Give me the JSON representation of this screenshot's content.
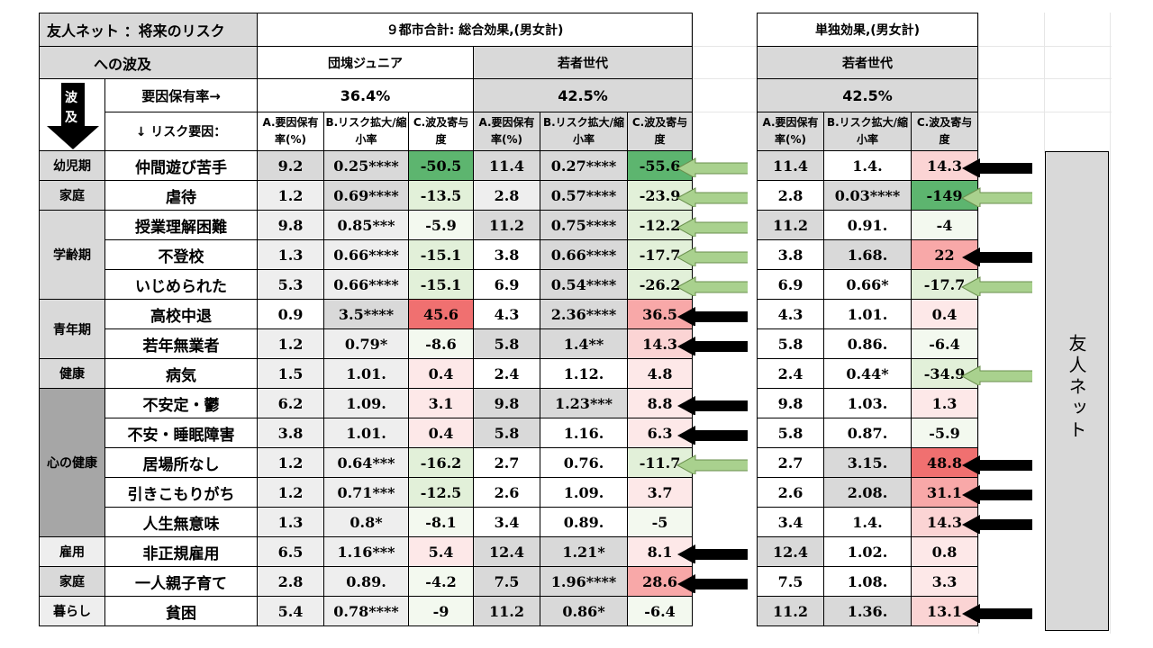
{
  "title_line1": "友人ネット ：将来のリスク",
  "title_line2": "への波及",
  "wave_label_1": "波",
  "wave_label_2": "及",
  "prevalence_label": "要因保有率→",
  "risk_factor_label": "↓ リスク要因：",
  "section_total": "９都市合計: 総合効果,(男女計)",
  "section_solo": "単独効果,(男女計)",
  "groups": {
    "dankai": "団塊ジュニア",
    "young": "若者世代",
    "young_solo": "若者世代"
  },
  "prevalence": {
    "dankai": "36.4%",
    "young": "42.5%",
    "young_solo": "42.5%"
  },
  "col_headers": {
    "a": "A.要因保有率(%)",
    "b": "B.リスク拡大/縮小率",
    "c": "C.波及寄与度"
  },
  "side_label": "友人ネット",
  "colors": {
    "green_strong": "#5db56f",
    "green_light": "#e2f0d9",
    "red_strong": "#f07070",
    "red_light": "#fbd4d4",
    "arrow_green": "#a9d18e",
    "arrow_black": "#000000"
  },
  "rows": [
    {
      "cat": "幼児期",
      "factor": "仲間遊び苦手",
      "d_a": "9.2",
      "d_b": "0.25****",
      "d_c": "-50.5",
      "y_a": "11.4",
      "y_b": "0.27****",
      "y_c": "-55.6",
      "s_a": "11.4",
      "s_b": "1.4.",
      "s_c": "14.3"
    },
    {
      "cat": "家庭",
      "factor": "虐待",
      "d_a": "1.2",
      "d_b": "0.69****",
      "d_c": "-13.5",
      "y_a": "2.8",
      "y_b": "0.57****",
      "y_c": "-23.9",
      "s_a": "2.8",
      "s_b": "0.03****",
      "s_c": "-149"
    },
    {
      "cat": "学齢期",
      "factor": "授業理解困難",
      "d_a": "9.8",
      "d_b": "0.85***",
      "d_c": "-5.9",
      "y_a": "11.2",
      "y_b": "0.75****",
      "y_c": "-12.2",
      "s_a": "11.2",
      "s_b": "0.91.",
      "s_c": "-4"
    },
    {
      "cat": "",
      "factor": "不登校",
      "d_a": "1.3",
      "d_b": "0.66****",
      "d_c": "-15.1",
      "y_a": "3.8",
      "y_b": "0.66****",
      "y_c": "-17.7",
      "s_a": "3.8",
      "s_b": "1.68.",
      "s_c": "22"
    },
    {
      "cat": "",
      "factor": "いじめられた",
      "d_a": "5.3",
      "d_b": "0.66****",
      "d_c": "-15.1",
      "y_a": "6.9",
      "y_b": "0.54****",
      "y_c": "-26.2",
      "s_a": "6.9",
      "s_b": "0.66*",
      "s_c": "-17.7"
    },
    {
      "cat": "青年期",
      "factor": "高校中退",
      "d_a": "0.9",
      "d_b": "3.5****",
      "d_c": "45.6",
      "y_a": "4.3",
      "y_b": "2.36****",
      "y_c": "36.5",
      "s_a": "4.3",
      "s_b": "1.01.",
      "s_c": "0.4"
    },
    {
      "cat": "",
      "factor": "若年無業者",
      "d_a": "1.2",
      "d_b": "0.79*",
      "d_c": "-8.6",
      "y_a": "5.8",
      "y_b": "1.4**",
      "y_c": "14.3",
      "s_a": "5.8",
      "s_b": "0.86.",
      "s_c": "-6.4"
    },
    {
      "cat": "健康",
      "factor": "病気",
      "d_a": "1.5",
      "d_b": "1.01.",
      "d_c": "0.4",
      "y_a": "2.4",
      "y_b": "1.12.",
      "y_c": "4.8",
      "s_a": "2.4",
      "s_b": "0.44*",
      "s_c": "-34.9"
    },
    {
      "cat": "心の健康",
      "factor": "不安定・鬱",
      "d_a": "6.2",
      "d_b": "1.09.",
      "d_c": "3.1",
      "y_a": "9.8",
      "y_b": "1.23***",
      "y_c": "8.8",
      "s_a": "9.8",
      "s_b": "1.03.",
      "s_c": "1.3"
    },
    {
      "cat": "",
      "factor": "不安・睡眠障害",
      "d_a": "3.8",
      "d_b": "1.01.",
      "d_c": "0.4",
      "y_a": "5.8",
      "y_b": "1.16.",
      "y_c": "6.3",
      "s_a": "5.8",
      "s_b": "0.87.",
      "s_c": "-5.9"
    },
    {
      "cat": "",
      "factor": "居場所なし",
      "d_a": "1.2",
      "d_b": "0.64***",
      "d_c": "-16.2",
      "y_a": "2.7",
      "y_b": "0.76.",
      "y_c": "-11.7",
      "s_a": "2.7",
      "s_b": "3.15.",
      "s_c": "48.8"
    },
    {
      "cat": "",
      "factor": "引きこもりがち",
      "d_a": "1.2",
      "d_b": "0.71***",
      "d_c": "-12.5",
      "y_a": "2.6",
      "y_b": "1.09.",
      "y_c": "3.7",
      "s_a": "2.6",
      "s_b": "2.08.",
      "s_c": "31.1"
    },
    {
      "cat": "",
      "factor": "人生無意味",
      "d_a": "1.3",
      "d_b": "0.8*",
      "d_c": "-8.1",
      "y_a": "3.4",
      "y_b": "0.89.",
      "y_c": "-5",
      "s_a": "3.4",
      "s_b": "1.4.",
      "s_c": "14.3"
    },
    {
      "cat": "雇用",
      "factor": "非正規雇用",
      "d_a": "6.5",
      "d_b": "1.16***",
      "d_c": "5.4",
      "y_a": "12.4",
      "y_b": "1.21*",
      "y_c": "8.1",
      "s_a": "12.4",
      "s_b": "1.02.",
      "s_c": "0.8"
    },
    {
      "cat": "家庭",
      "factor": "一人親子育て",
      "d_a": "2.8",
      "d_b": "0.89.",
      "d_c": "-4.2",
      "y_a": "7.5",
      "y_b": "1.96****",
      "y_c": "28.6",
      "s_a": "7.5",
      "s_b": "1.08.",
      "s_c": "3.3"
    },
    {
      "cat": "暮らし",
      "factor": "貧困",
      "d_a": "5.4",
      "d_b": "0.78****",
      "d_c": "-9",
      "y_a": "11.2",
      "y_b": "0.86*",
      "y_c": "-6.4",
      "s_a": "11.2",
      "s_b": "1.36.",
      "s_c": "13.1"
    }
  ]
}
